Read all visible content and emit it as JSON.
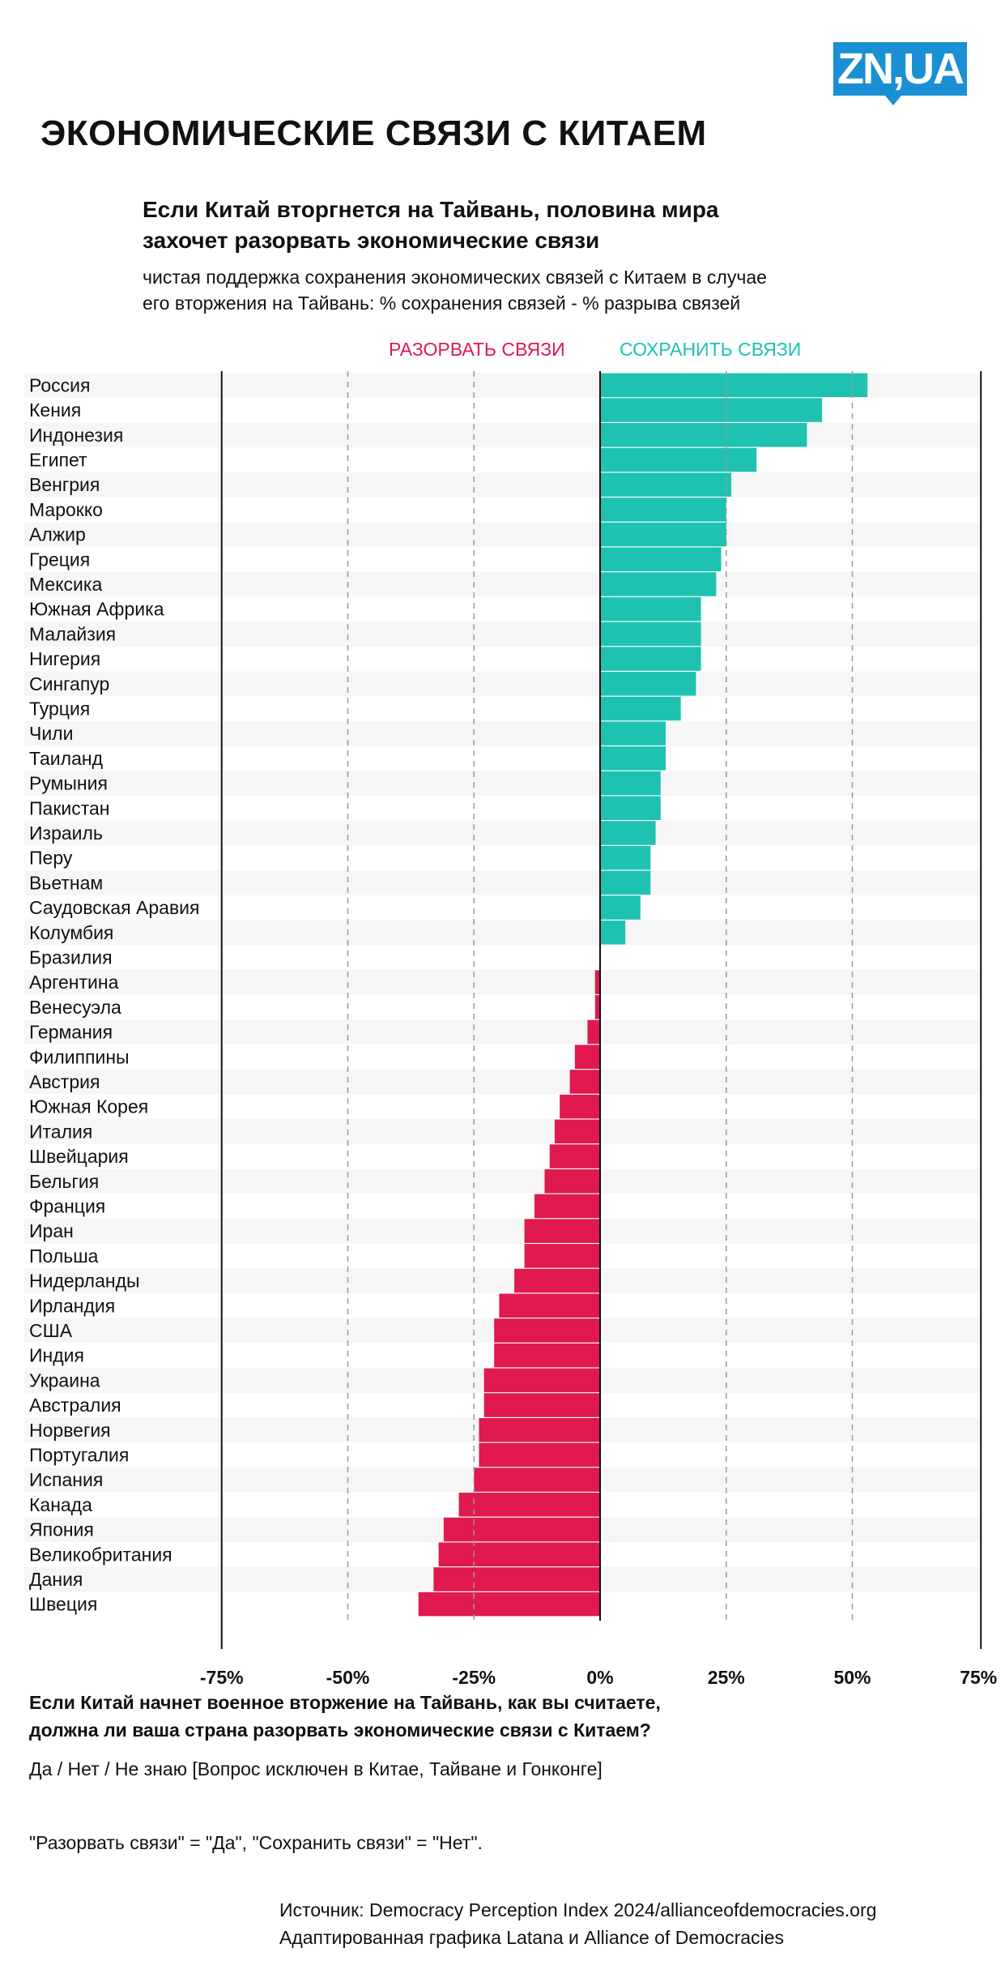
{
  "brand": {
    "logo_text": "ZN,UA",
    "color": "#1b8fd3"
  },
  "header": {
    "title": "ЭКОНОМИЧЕСКИЕ СВЯЗИ С КИТАЕМ",
    "subtitle_line1": "Если Китай вторгнется на Тайвань, половина мира",
    "subtitle_line2": "захочет разорвать экономические связи",
    "description_line1": "чистая поддержка сохранения экономических связей с Китаем в случае",
    "description_line2": "его вторжения на Тайвань: % сохранения связей - % разрыва связей"
  },
  "legend": {
    "break_label": "РАЗОРВАТЬ СВЯЗИ",
    "keep_label": "СОХРАНИТЬ СВЯЗИ",
    "break_color": "#e0194e",
    "keep_color": "#1fc2b1"
  },
  "chart_data": {
    "type": "bar",
    "orientation": "horizontal",
    "xlim": [
      -75,
      75
    ],
    "x_ticks": [
      -75,
      -50,
      -25,
      0,
      25,
      50,
      75
    ],
    "x_tick_labels": [
      "-75%",
      "-50%",
      "-25%",
      "0%",
      "25%",
      "50%",
      "75%"
    ],
    "grid": "dashed vertical",
    "categories": [
      "Россия",
      "Кения",
      "Индонезия",
      "Египет",
      "Венгрия",
      "Марокко",
      "Алжир",
      "Греция",
      "Мексика",
      "Южная Африка",
      "Малайзия",
      "Нигерия",
      "Сингапур",
      "Турция",
      "Чили",
      "Таиланд",
      "Румыния",
      "Пакистан",
      "Израиль",
      "Перу",
      "Вьетнам",
      "Саудовская Аравия",
      "Колумбия",
      "Бразилия",
      "Аргентина",
      "Венесуэла",
      "Германия",
      "Филиппины",
      "Австрия",
      "Южная Корея",
      "Италия",
      "Швейцария",
      "Бельгия",
      "Франция",
      "Иран",
      "Польша",
      "Нидерланды",
      "Ирландия",
      "США",
      "Индия",
      "Украина",
      "Австралия",
      "Норвегия",
      "Португалия",
      "Испания",
      "Канада",
      "Япония",
      "Великобритания",
      "Дания",
      "Швеция"
    ],
    "values": [
      53,
      44,
      41,
      31,
      26,
      25,
      25,
      24,
      23,
      20,
      20,
      20,
      19,
      16,
      13,
      13,
      12,
      12,
      11,
      10,
      10,
      8,
      5,
      0,
      -1,
      -1,
      -2.5,
      -5,
      -6,
      -8,
      -9,
      -10,
      -11,
      -13,
      -15,
      -15,
      -17,
      -20,
      -21,
      -21,
      -23,
      -23,
      -24,
      -24,
      -25,
      -28,
      -31,
      -32,
      -33,
      -36
    ]
  },
  "footer": {
    "question_line1": "Если Китай начнет военное вторжение на Тайвань, как вы считаете,",
    "question_line2": "должна ли ваша страна разорвать экономические связи с Китаем?",
    "answers": "Да / Нет / Не знаю [Вопрос исключен в Китае, Тайване и Гонконге]",
    "note": "\"Разорвать связи\" = \"Да\", \"Сохранить связи\" = \"Нет\".",
    "source": "Источник: Democracy Perception Index 2024/allianceofdemocracies.org",
    "credit": "Адаптированная графика Latana и Alliance of Democracies"
  }
}
